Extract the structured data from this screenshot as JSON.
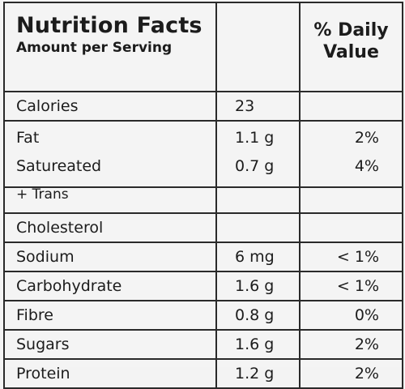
{
  "header": {
    "title": "Nutrition Facts",
    "subtitle": "Amount per Serving",
    "daily_value_line1": "% Daily",
    "daily_value_line2": "Value"
  },
  "rows": [
    {
      "name": "Calories",
      "amount": "23",
      "dv": ""
    },
    {
      "name": "Fat",
      "amount": "1.1 g",
      "dv": "2%"
    },
    {
      "name": "Satureated",
      "sub": "+ Trans",
      "amount": "0.7 g",
      "dv": "4%"
    },
    {
      "name": "Cholesterol",
      "amount": "",
      "dv": ""
    },
    {
      "name": "Sodium",
      "amount": "6 mg",
      "dv": "< 1%"
    },
    {
      "name": "Carbohydrate",
      "amount": "1.6 g",
      "dv": "< 1%"
    },
    {
      "name": "Fibre",
      "amount": "0.8 g",
      "dv": "0%"
    },
    {
      "name": "Sugars",
      "amount": "1.6 g",
      "dv": "2%"
    },
    {
      "name": "Protein",
      "amount": "1.2 g",
      "dv": "2%"
    }
  ]
}
